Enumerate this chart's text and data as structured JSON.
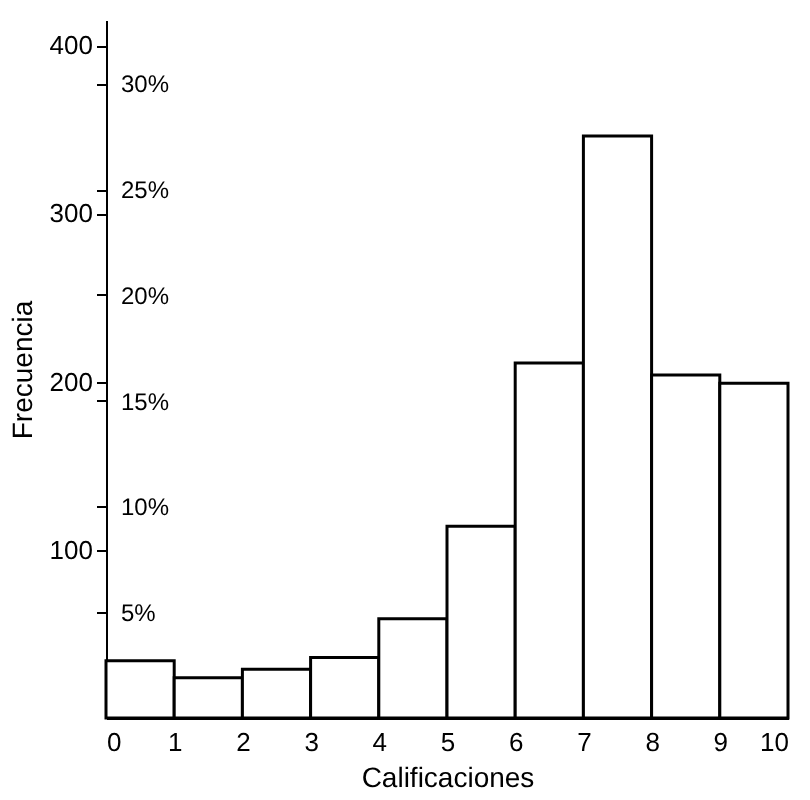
{
  "chart_data": {
    "type": "histogram",
    "xlabel": "Calificaciones",
    "ylabel": "Frecuencia",
    "bins": [
      0,
      1,
      2,
      3,
      4,
      5,
      6,
      7,
      8,
      9,
      10
    ],
    "values": [
      34,
      24,
      29,
      36,
      59,
      114,
      211,
      346,
      204,
      199
    ],
    "color": "#ffffff",
    "xlim": [
      0,
      10
    ],
    "xticks": [
      0,
      1,
      2,
      3,
      4,
      5,
      6,
      7,
      8,
      9,
      10
    ],
    "ylim": [
      0,
      415
    ],
    "yticks": [
      100,
      200,
      300,
      400
    ],
    "y2lim": [
      0,
      33
    ],
    "y2ticks": [
      {
        "value": 5,
        "label": "5%"
      },
      {
        "value": 10,
        "label": "10%"
      },
      {
        "value": 15,
        "label": "15%"
      },
      {
        "value": 20,
        "label": "20%"
      },
      {
        "value": 25,
        "label": "25%"
      },
      {
        "value": 30,
        "label": "30%"
      }
    ],
    "grid": false
  }
}
